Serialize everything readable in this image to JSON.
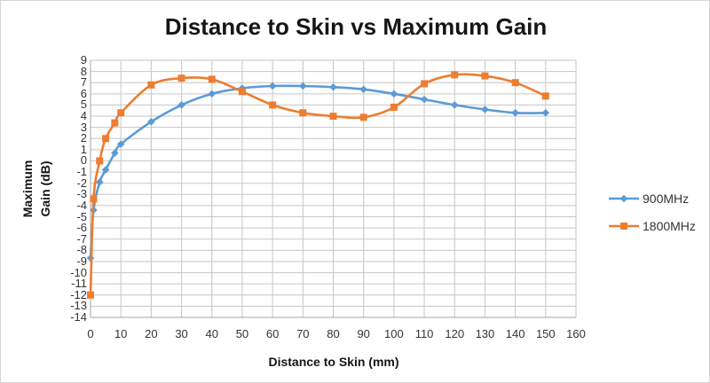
{
  "title": "Distance to Skin vs Maximum Gain",
  "x_axis": {
    "label": "Distance to Skin (mm)",
    "ticks": [
      0,
      10,
      20,
      30,
      40,
      50,
      60,
      70,
      80,
      90,
      100,
      110,
      120,
      130,
      140,
      150,
      160
    ]
  },
  "y_axis": {
    "label_line1": "Maximum",
    "label_line2": "Gain (dB)",
    "ticks": [
      9,
      8,
      7,
      6,
      5,
      4,
      3,
      2,
      1,
      0,
      -1,
      -2,
      -3,
      -4,
      -5,
      -6,
      -7,
      -8,
      -9,
      -10,
      -11,
      -12,
      -13,
      -14
    ]
  },
  "legend": {
    "items": [
      {
        "label": "900MHz",
        "color": "#5B9BD5",
        "marker": "diamond"
      },
      {
        "label": "1800MHz",
        "color": "#ED7D31",
        "marker": "square"
      }
    ]
  },
  "colors": {
    "series_900": "#5B9BD5",
    "series_1800": "#ED7D31",
    "gridline": "#C6C6C6",
    "axis_line": "#A6A6A6",
    "tick_text": "#333333",
    "title_text": "#151515"
  },
  "chart_data": {
    "type": "line",
    "smooth": true,
    "grid": true,
    "legend_position": "right",
    "title": "Distance to Skin vs Maximum Gain",
    "xlabel": "Distance to Skin (mm)",
    "ylabel": "Maximum Gain (dB)",
    "xlim": [
      0,
      160
    ],
    "ylim": [
      -14,
      9
    ],
    "x": [
      0,
      1,
      3,
      5,
      8,
      10,
      20,
      30,
      40,
      50,
      60,
      70,
      80,
      90,
      100,
      110,
      120,
      130,
      140,
      150
    ],
    "series": [
      {
        "name": "900MHz",
        "color": "#5B9BD5",
        "marker": "diamond",
        "values": [
          -8.7,
          -4.4,
          -1.9,
          -0.8,
          0.7,
          1.5,
          3.5,
          5.0,
          6.0,
          6.5,
          6.7,
          6.7,
          6.6,
          6.4,
          6.0,
          5.5,
          5.0,
          4.6,
          4.3,
          4.3
        ]
      },
      {
        "name": "1800MHz",
        "color": "#ED7D31",
        "marker": "square",
        "values": [
          -12.0,
          -3.4,
          0.0,
          2.0,
          3.4,
          4.3,
          6.8,
          7.4,
          7.3,
          6.2,
          5.0,
          4.3,
          4.0,
          3.9,
          4.8,
          6.9,
          7.7,
          7.6,
          7.0,
          5.8
        ]
      }
    ]
  }
}
